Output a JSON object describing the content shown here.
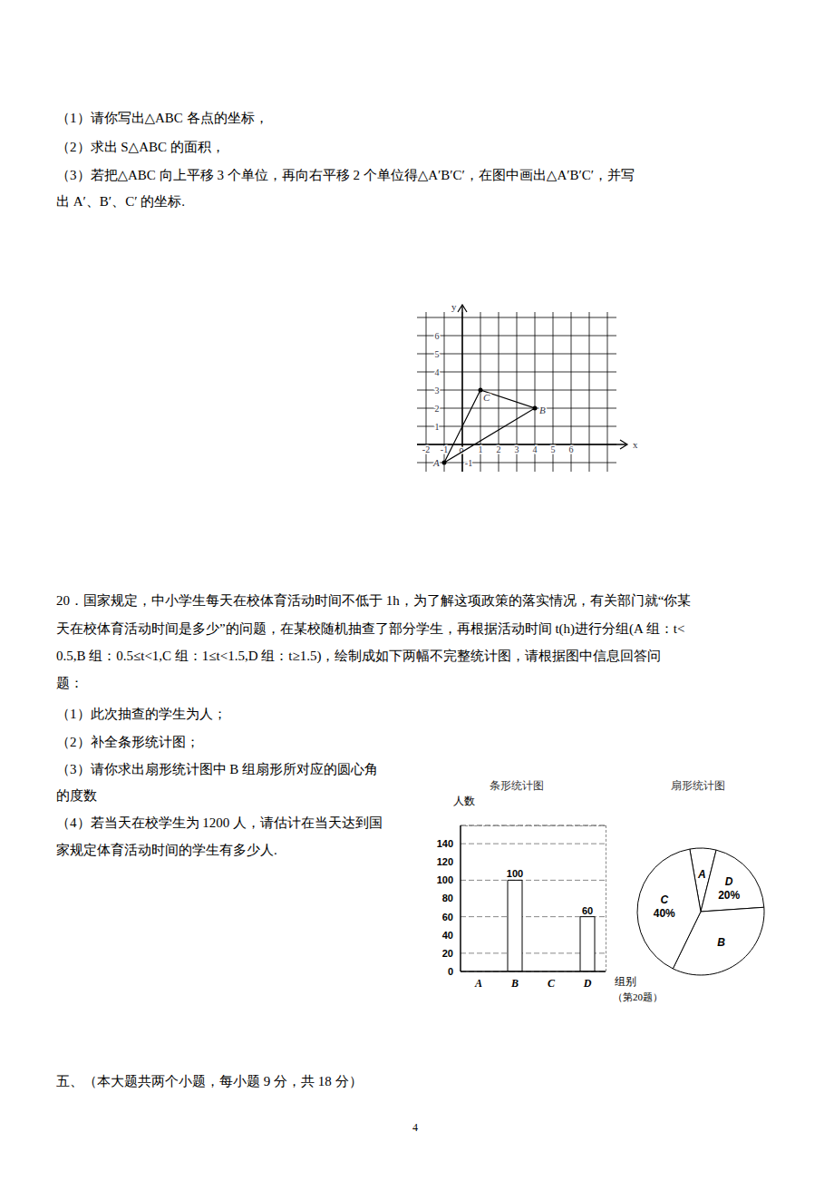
{
  "q19_parts": [
    "（1）请你写出△ABC 各点的坐标，",
    "（2）求出 S△ABC 的面积，",
    "（3）若把△ABC 向上平移 3 个单位，再向右平移 2 个单位得△A′B′C′，在图中画出△A′B′C′，并写",
    "出 A′、B′、C′ 的坐标."
  ],
  "grid_figure": {
    "x_label": "x",
    "y_label": "y",
    "origin_label": "o",
    "x_ticks": [
      -2,
      -1,
      1,
      2,
      3,
      4,
      5,
      6
    ],
    "y_ticks": [
      -1,
      1,
      2,
      3,
      4,
      5,
      6
    ],
    "points": [
      {
        "label": "A",
        "x": -1,
        "y": -1
      },
      {
        "label": "B",
        "x": 4,
        "y": 2
      },
      {
        "label": "C",
        "x": 1,
        "y": 3
      }
    ]
  },
  "q20_intro": [
    "20．国家规定，中小学生每天在校体育活动时间不低于 1h，为了解这项政策的落实情况，有关部门就“你某",
    "天在校体育活动时间是多少”的问题，在某校随机抽查了部分学生，再根据活动时间 t(h)进行分组(A 组：t<",
    "0.5,B 组：0.5≤t<1,C 组：1≤t<1.5,D 组：t≥1.5)，绘制成如下两幅不完整统计图，请根据图中信息回答问",
    "题："
  ],
  "q20_parts": [
    "（1）此次抽查的学生为人；",
    "（2）补全条形统计图；",
    "（3）请你求出扇形统计图中 B 组扇形所对应的圆心角",
    "的度数",
    "（4）若当天在校学生为 1200 人，请估计在当天达到国",
    "家规定体育活动时间的学生有多少人."
  ],
  "section": "五、（本大题共两个小题，每小题 9 分，共 18 分）",
  "page_number": "4",
  "chart_data": [
    {
      "type": "bar",
      "title": "条形统计图",
      "y_label": "人数",
      "x_label": "组别",
      "caption": "（第20题）",
      "categories": [
        "A",
        "B",
        "C",
        "D"
      ],
      "values": [
        null,
        100,
        null,
        60
      ],
      "ylim": [
        0,
        160
      ],
      "yticks": [
        0,
        20,
        40,
        60,
        80,
        100,
        120,
        140
      ],
      "grid": true,
      "data_labels": true,
      "color": "#ffffff"
    },
    {
      "type": "pie",
      "title": "扇形统计图",
      "categories": [
        "A",
        "D",
        "B",
        "C"
      ],
      "values": [
        6.7,
        20,
        33.3,
        40
      ],
      "value_labels": [
        null,
        "20%",
        null,
        "40%"
      ],
      "data_labels": true,
      "color": "#ffffff"
    }
  ]
}
